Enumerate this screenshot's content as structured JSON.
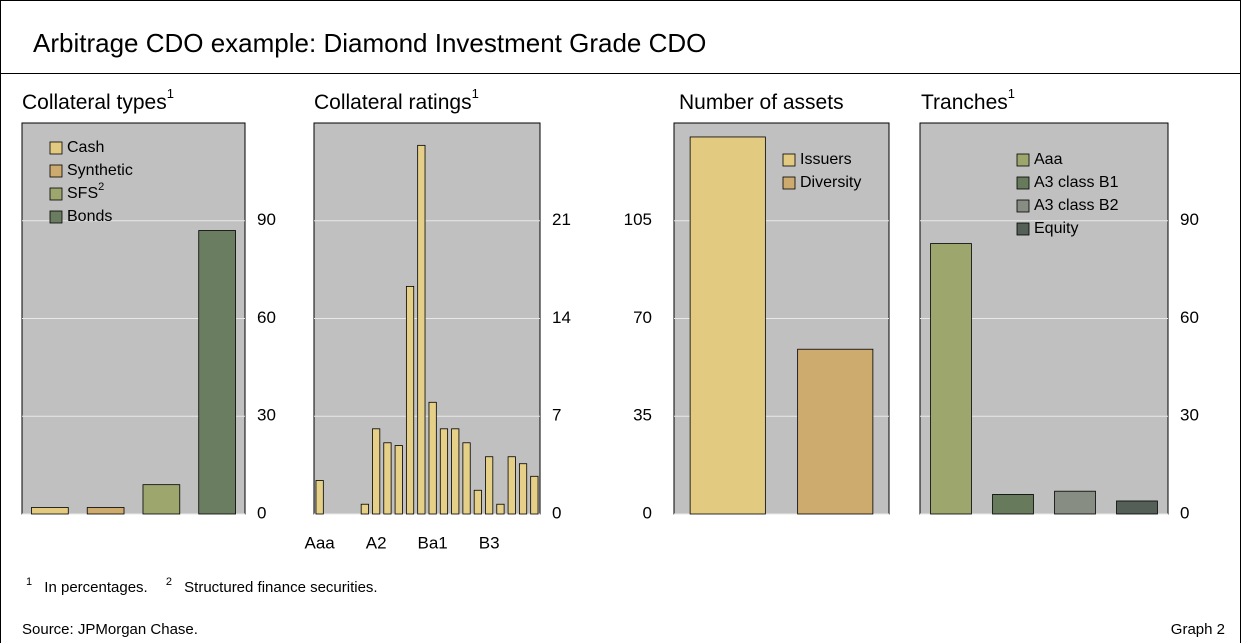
{
  "header": {
    "title": "Arbitrage CDO example: Diamond Investment Grade CDO"
  },
  "chart_data": [
    {
      "type": "bar",
      "title": "Collateral types",
      "title_sup": "1",
      "categories": [
        "Cash",
        "Synthetic",
        "SFS",
        "Bonds"
      ],
      "category_sups": [
        null,
        null,
        "2",
        null
      ],
      "values": [
        2,
        2,
        9,
        87
      ],
      "colors": [
        "#e2ca80",
        "#cdaa6e",
        "#9ca66d",
        "#6b7d60"
      ],
      "ylim": [
        0,
        120
      ],
      "yticks": [
        0,
        30,
        60,
        90
      ],
      "axis_side": "right",
      "grid": true,
      "legend": "upper left"
    },
    {
      "type": "bar",
      "title": "Collateral ratings",
      "title_sup": "1",
      "categories": [
        "Aaa",
        null,
        null,
        null,
        null,
        "A2",
        null,
        null,
        null,
        null,
        "Ba1",
        null,
        null,
        null,
        null,
        "B3",
        null,
        null,
        null,
        null
      ],
      "values": [
        2.4,
        0,
        0,
        0,
        0.7,
        6.1,
        5.1,
        4.9,
        16.3,
        26.4,
        8,
        6.1,
        6.1,
        5.1,
        1.7,
        4.1,
        0.7,
        4.1,
        3.6,
        2.7
      ],
      "color": "#e6d088",
      "ylim": [
        0,
        28
      ],
      "yticks": [
        0,
        7,
        14,
        21
      ],
      "axis_side": "right",
      "grid": true
    },
    {
      "type": "bar",
      "title": "Number of assets",
      "categories": [
        "Issuers",
        "Diversity"
      ],
      "values": [
        135,
        59
      ],
      "colors": [
        "#e2ca80",
        "#cdaa6e"
      ],
      "ylim": [
        0,
        140
      ],
      "yticks": [
        0,
        35,
        70,
        105
      ],
      "axis_side": "left",
      "grid": true,
      "legend": "upper right"
    },
    {
      "type": "bar",
      "title": "Tranches",
      "title_sup": "1",
      "categories": [
        "Aaa",
        "A3 class B1",
        "A3 class B2",
        "Equity"
      ],
      "values": [
        83,
        6,
        7,
        4
      ],
      "colors": [
        "#9ca66d",
        "#677a5c",
        "#878d82",
        "#545f57"
      ],
      "ylim": [
        0,
        120
      ],
      "yticks": [
        0,
        30,
        60,
        90
      ],
      "axis_side": "right",
      "grid": true,
      "legend": "upper right"
    }
  ],
  "footnotes": [
    {
      "mark": "1",
      "text": "In percentages."
    },
    {
      "mark": "2",
      "text": "Structured finance securities."
    }
  ],
  "source": "Source: JPMorgan Chase.",
  "graph_label": "Graph 2"
}
